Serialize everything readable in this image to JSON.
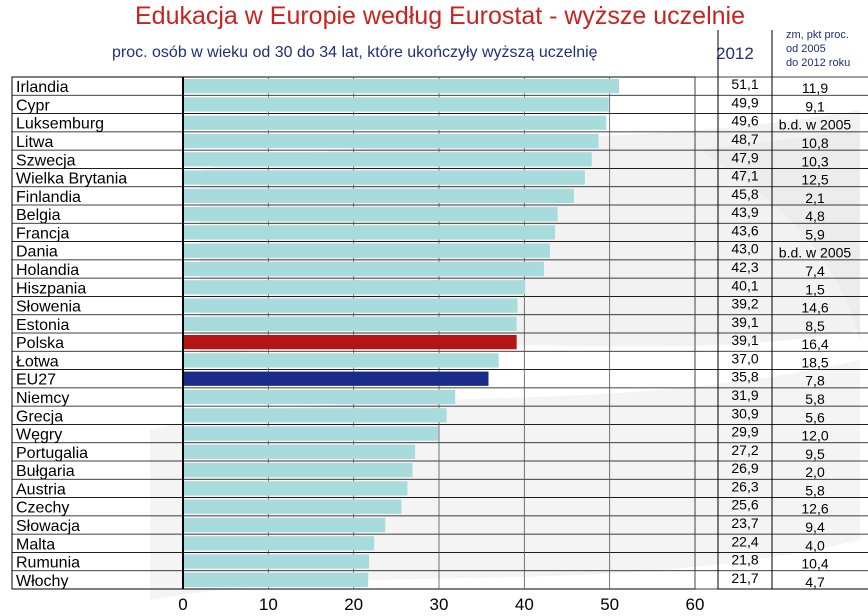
{
  "title": "Edukacja w Europie według Eurostat - wyższe uczelnie",
  "subtitle": "proc. osób w wieku od 30 do 34 lat, które ukończyły wyższą uczelnię",
  "year_header": "2012",
  "change_header": [
    "zm, pkt proc.",
    "od 2005",
    "do 2012 roku"
  ],
  "colors": {
    "bar": "#a8dcdc",
    "highlight": "#b41414",
    "eu": "#1a2b8c",
    "title": "#c8231e",
    "subtitle": "#1f2f7a"
  },
  "chart_data": {
    "type": "bar",
    "orientation": "horizontal",
    "xlim": [
      0,
      60
    ],
    "xticks": [
      "0",
      "10",
      "20",
      "30",
      "40",
      "50",
      "60"
    ],
    "categories": [
      "Irlandia",
      "Cypr",
      "Luksemburg",
      "Litwa",
      "Szwecja",
      "Wielka Brytania",
      "Finlandia",
      "Belgia",
      "Francja",
      "Dania",
      "Holandia",
      "Hiszpania",
      "Słowenia",
      "Estonia",
      "Polska",
      "Łotwa",
      "EU27",
      "Niemcy",
      "Grecja",
      "Węgry",
      "Portugalia",
      "Bułgaria",
      "Austria",
      "Czechy",
      "Słowacja",
      "Malta",
      "Rumunia",
      "Włochy"
    ],
    "values": [
      51.1,
      49.9,
      49.6,
      48.7,
      47.9,
      47.1,
      45.8,
      43.9,
      43.6,
      43.0,
      42.3,
      40.1,
      39.2,
      39.1,
      39.1,
      37.0,
      35.8,
      31.9,
      30.9,
      29.9,
      27.2,
      26.9,
      26.3,
      25.6,
      23.7,
      22.4,
      21.8,
      21.7
    ],
    "value_labels": [
      "51,1",
      "49,9",
      "49,6",
      "48,7",
      "47,9",
      "47,1",
      "45,8",
      "43,9",
      "43,6",
      "43,0",
      "42,3",
      "40,1",
      "39,2",
      "39,1",
      "39,1",
      "37,0",
      "35,8",
      "31,9",
      "30,9",
      "29,9",
      "27,2",
      "26,9",
      "26,3",
      "25,6",
      "23,7",
      "22,4",
      "21,8",
      "21,7"
    ],
    "change_labels": [
      "11,9",
      "9,1",
      "b.d. w 2005",
      "10,8",
      "10,3",
      "12,5",
      "2,1",
      "4,8",
      "5,9",
      "b.d. w 2005",
      "7,4",
      "1,5",
      "14,6",
      "8,5",
      "16,4",
      "18,5",
      "7,8",
      "5,8",
      "5,6",
      "12,0",
      "9,5",
      "2,0",
      "5,8",
      "12,6",
      "9,4",
      "4,0",
      "10,4",
      "4,7"
    ],
    "highlight": "Polska",
    "reference": "EU27"
  }
}
